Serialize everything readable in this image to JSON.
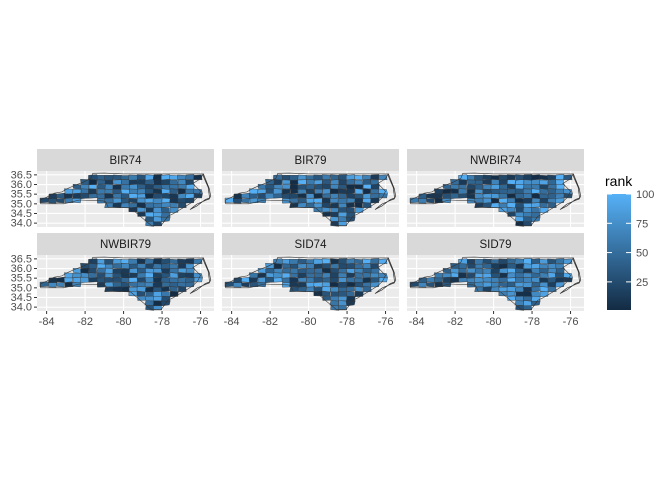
{
  "chart_data": {
    "type": "map",
    "facets": [
      "BIR74",
      "BIR79",
      "NWBIR74",
      "NWBIR79",
      "SID74",
      "SID79"
    ],
    "xlim": [
      -84.5,
      -75.3
    ],
    "ylim": [
      33.8,
      36.7
    ],
    "x_ticks": [
      -84,
      -82,
      -80,
      -78,
      -76
    ],
    "x_tick_labels": [
      "-84",
      "-82",
      "-80",
      "-78",
      "-76"
    ],
    "y_ticks": [
      34.0,
      34.5,
      35.0,
      35.5,
      36.0,
      36.5
    ],
    "y_tick_labels": [
      "34.0",
      "34.5",
      "35.0",
      "35.5",
      "36.0",
      "36.5"
    ],
    "grid": true,
    "legend": {
      "title": "rank",
      "position": "right",
      "breaks": [
        25,
        50,
        75,
        100
      ],
      "break_labels": [
        "25",
        "50",
        "75",
        "100"
      ],
      "range": [
        1,
        100
      ],
      "low_color": "#132B43",
      "high_color": "#56B1F7"
    },
    "panel_background": "#EBEBEB",
    "strip_background": "#D9D9D9",
    "outline_color": "#333333"
  }
}
